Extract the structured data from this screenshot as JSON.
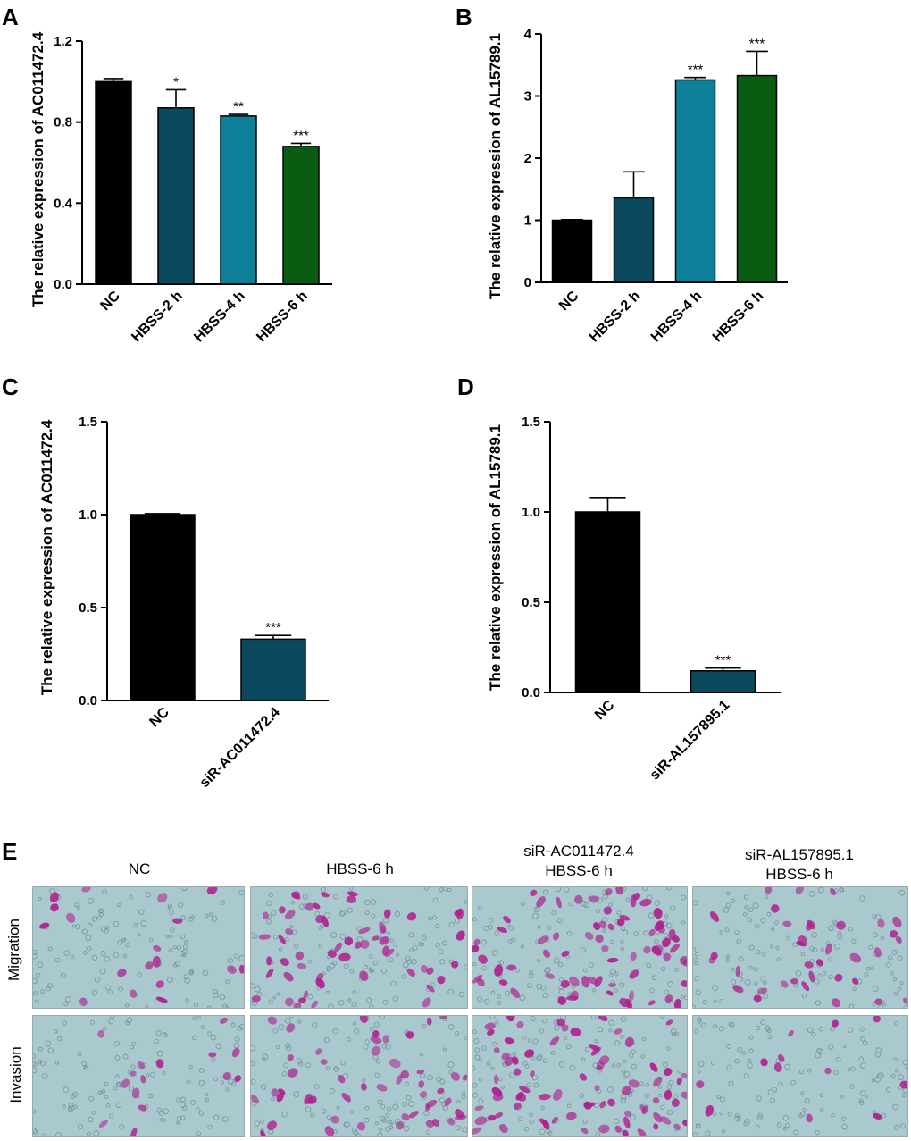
{
  "panels": {
    "A": "A",
    "B": "B",
    "C": "C",
    "D": "D",
    "E": "E"
  },
  "chart_data": [
    {
      "panel": "A",
      "type": "bar",
      "ylabel": "The relative expression of AC011472.4",
      "categories": [
        "NC",
        "HBSS-2 h",
        "HBSS-4 h",
        "HBSS-6 h"
      ],
      "values": [
        1.0,
        0.87,
        0.83,
        0.68
      ],
      "errors": [
        0.015,
        0.09,
        0.008,
        0.015
      ],
      "significance": [
        "",
        "*",
        "**",
        "***"
      ],
      "colors": [
        "#000000",
        "#0b4a5e",
        "#0e7f98",
        "#0a5c12"
      ],
      "ylim": [
        0,
        1.2
      ],
      "yticks": [
        0.0,
        0.4,
        0.8,
        1.2
      ],
      "ytick_labels": [
        "0.0",
        "0.4",
        "0.8",
        "1.2"
      ]
    },
    {
      "panel": "B",
      "type": "bar",
      "ylabel": "The relative expression of AL15789.1",
      "categories": [
        "NC",
        "HBSS-2 h",
        "HBSS-4 h",
        "HBSS-6 h"
      ],
      "values": [
        1.0,
        1.36,
        3.26,
        3.33
      ],
      "errors": [
        0.01,
        0.42,
        0.04,
        0.39
      ],
      "significance": [
        "",
        "",
        "***",
        "***"
      ],
      "colors": [
        "#000000",
        "#0b4a5e",
        "#0e7f98",
        "#0a5c12"
      ],
      "ylim": [
        0,
        4
      ],
      "yticks": [
        0,
        1,
        2,
        3,
        4
      ],
      "ytick_labels": [
        "0",
        "1",
        "2",
        "3",
        "4"
      ]
    },
    {
      "panel": "C",
      "type": "bar",
      "ylabel": "The relative expression of AC011472.4",
      "categories": [
        "NC",
        "siR-AC011472.4"
      ],
      "values": [
        1.0,
        0.33
      ],
      "errors": [
        0.005,
        0.02
      ],
      "significance": [
        "",
        "***"
      ],
      "colors": [
        "#000000",
        "#0b4a5e"
      ],
      "ylim": [
        0,
        1.5
      ],
      "yticks": [
        0.0,
        0.5,
        1.0,
        1.5
      ],
      "ytick_labels": [
        "0.0",
        "0.5",
        "1.0",
        "1.5"
      ]
    },
    {
      "panel": "D",
      "type": "bar",
      "ylabel": "The relative expression of AL15789.1",
      "categories": [
        "NC",
        "siR-AL157895.1"
      ],
      "values": [
        1.0,
        0.12
      ],
      "errors": [
        0.08,
        0.015
      ],
      "significance": [
        "",
        "***"
      ],
      "colors": [
        "#000000",
        "#0b4a5e"
      ],
      "ylim": [
        0,
        1.5
      ],
      "yticks": [
        0.0,
        0.5,
        1.0,
        1.5
      ],
      "ytick_labels": [
        "0.0",
        "0.5",
        "1.0",
        "1.5"
      ]
    }
  ],
  "panel_e": {
    "columns": [
      [
        "NC"
      ],
      [
        "HBSS-6 h"
      ],
      [
        "siR-AC011472.4",
        "HBSS-6 h"
      ],
      [
        "siR-AL157895.1",
        "HBSS-6 h"
      ]
    ],
    "rows": [
      "Migration",
      "Invasion"
    ],
    "density": [
      [
        18,
        55,
        70,
        35
      ],
      [
        15,
        50,
        75,
        12
      ]
    ],
    "colors": {
      "background": "#a9c9cf",
      "stained_cell": "#b0208e",
      "pore": "#6f8a8f"
    }
  }
}
